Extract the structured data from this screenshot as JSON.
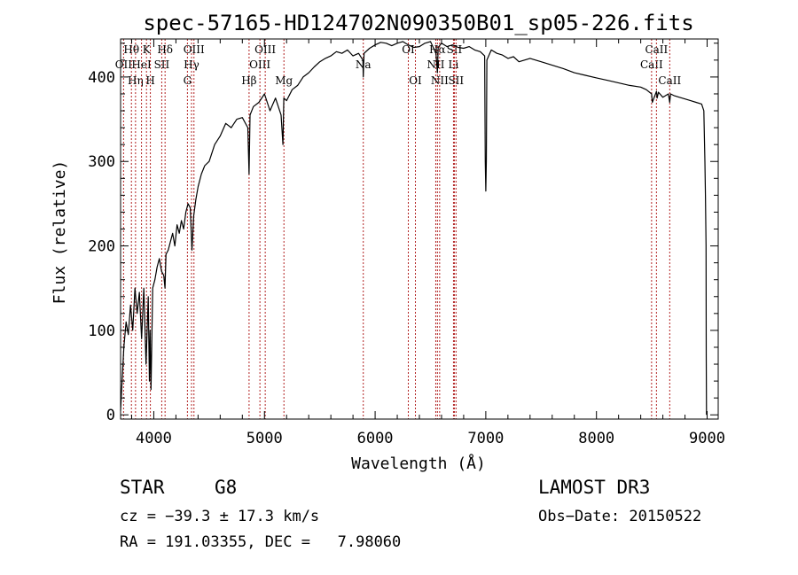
{
  "chart_data": {
    "type": "line",
    "title": "spec-57165-HD124702N090350B01_sp05-226.fits",
    "xlabel": "Wavelength (Å)",
    "ylabel": "Flux (relative)",
    "xlim": [
      3700,
      9100
    ],
    "ylim": [
      -5,
      445
    ],
    "xticks": [
      4000,
      5000,
      6000,
      7000,
      8000,
      9000
    ],
    "xtick_labels": [
      "4000",
      "5000",
      "6000",
      "7000",
      "8000",
      "9000"
    ],
    "yticks": [
      0,
      100,
      200,
      300,
      400
    ],
    "ytick_labels": [
      "0",
      "100",
      "200",
      "300",
      "400"
    ],
    "series": [
      {
        "name": "flux",
        "x": [
          3700,
          3710,
          3730,
          3750,
          3770,
          3790,
          3810,
          3830,
          3850,
          3870,
          3890,
          3910,
          3930,
          3950,
          3960,
          3967,
          3975,
          3990,
          4010,
          4030,
          4050,
          4070,
          4090,
          4101,
          4110,
          4130,
          4150,
          4170,
          4190,
          4210,
          4230,
          4250,
          4270,
          4290,
          4310,
          4330,
          4340,
          4345,
          4360,
          4380,
          4400,
          4430,
          4460,
          4500,
          4550,
          4600,
          4650,
          4700,
          4750,
          4800,
          4850,
          4861,
          4870,
          4900,
          4950,
          5000,
          5050,
          5100,
          5150,
          5167,
          5175,
          5200,
          5250,
          5300,
          5350,
          5400,
          5450,
          5500,
          5550,
          5600,
          5650,
          5700,
          5750,
          5800,
          5850,
          5890,
          5893,
          5900,
          5950,
          6000,
          6050,
          6100,
          6150,
          6200,
          6250,
          6300,
          6350,
          6400,
          6450,
          6500,
          6550,
          6563,
          6570,
          6600,
          6650,
          6700,
          6750,
          6800,
          6850,
          6900,
          6950,
          6990,
          6995,
          7000,
          7005,
          7010,
          7050,
          7100,
          7150,
          7200,
          7250,
          7300,
          7350,
          7400,
          7500,
          7600,
          7700,
          7800,
          7900,
          8000,
          8100,
          8200,
          8300,
          8400,
          8450,
          8498,
          8505,
          8542,
          8548,
          8560,
          8600,
          8650,
          8662,
          8670,
          8700,
          8750,
          8800,
          8850,
          8900,
          8950,
          8970,
          8980,
          8985,
          8990,
          8992,
          8994
        ],
        "values": [
          5,
          30,
          80,
          110,
          95,
          130,
          100,
          150,
          120,
          145,
          90,
          150,
          60,
          140,
          40,
          100,
          30,
          150,
          160,
          175,
          185,
          170,
          165,
          150,
          190,
          195,
          205,
          215,
          200,
          225,
          215,
          230,
          220,
          240,
          250,
          245,
          210,
          195,
          235,
          255,
          270,
          285,
          295,
          300,
          320,
          330,
          345,
          340,
          350,
          352,
          340,
          285,
          355,
          365,
          370,
          380,
          360,
          375,
          355,
          320,
          375,
          372,
          385,
          390,
          400,
          405,
          412,
          418,
          422,
          425,
          430,
          428,
          432,
          425,
          428,
          420,
          400,
          428,
          434,
          438,
          441,
          440,
          437,
          440,
          442,
          438,
          435,
          436,
          440,
          442,
          428,
          405,
          435,
          440,
          436,
          438,
          435,
          434,
          436,
          432,
          430,
          425,
          300,
          265,
          300,
          420,
          432,
          428,
          426,
          422,
          424,
          418,
          420,
          422,
          418,
          414,
          410,
          405,
          402,
          399,
          396,
          393,
          390,
          388,
          385,
          380,
          370,
          383,
          375,
          382,
          376,
          380,
          370,
          380,
          378,
          376,
          374,
          372,
          370,
          368,
          360,
          300,
          260,
          200,
          70,
          0
        ]
      }
    ],
    "line_markers": [
      {
        "wl": 3727,
        "label": "OII",
        "row": 1
      },
      {
        "wl": 3798,
        "label": "Hθ",
        "row": 0
      },
      {
        "wl": 3835,
        "label": "Hη",
        "row": 2
      },
      {
        "wl": 3889,
        "label": "HeI",
        "row": 1
      },
      {
        "wl": 3934,
        "label": "K",
        "row": 0
      },
      {
        "wl": 3969,
        "label": "H",
        "row": 2
      },
      {
        "wl": 4072,
        "label": "SII",
        "row": 1
      },
      {
        "wl": 4102,
        "label": "Hδ",
        "row": 0
      },
      {
        "wl": 4304,
        "label": "G",
        "row": 2
      },
      {
        "wl": 4341,
        "label": "Hγ",
        "row": 1
      },
      {
        "wl": 4363,
        "label": "OIII",
        "row": 0
      },
      {
        "wl": 4861,
        "label": "Hβ",
        "row": 2
      },
      {
        "wl": 4959,
        "label": "OIII",
        "row": 1
      },
      {
        "wl": 5007,
        "label": "OIII",
        "row": 0
      },
      {
        "wl": 5176,
        "label": "Mg",
        "row": 2
      },
      {
        "wl": 5893,
        "label": "Na",
        "row": 1
      },
      {
        "wl": 6300,
        "label": "OI",
        "row": 0
      },
      {
        "wl": 6364,
        "label": "OI",
        "row": 2
      },
      {
        "wl": 6548,
        "label": "NII",
        "row": 1
      },
      {
        "wl": 6563,
        "label": "Hα",
        "row": 0
      },
      {
        "wl": 6583,
        "label": "NII",
        "row": 2
      },
      {
        "wl": 6708,
        "label": "Li",
        "row": 1
      },
      {
        "wl": 6716,
        "label": "SII",
        "row": 0
      },
      {
        "wl": 6731,
        "label": "SII",
        "row": 2
      },
      {
        "wl": 8498,
        "label": "CaII",
        "row": 1
      },
      {
        "wl": 8542,
        "label": "CaII",
        "row": 0
      },
      {
        "wl": 8662,
        "label": "CaII",
        "row": 2
      }
    ]
  },
  "info": {
    "object_class": "STAR",
    "subclass": "G8",
    "survey": "LAMOST DR3",
    "cz": "cz = −39.3 ± 17.3 km/s",
    "obs_date": "Obs−Date: 20150522",
    "coords": "RA = 191.03355, DEC =   7.98060"
  },
  "colors": {
    "spectrum": "#000000",
    "marker": "#b22222",
    "axis": "#000000"
  }
}
